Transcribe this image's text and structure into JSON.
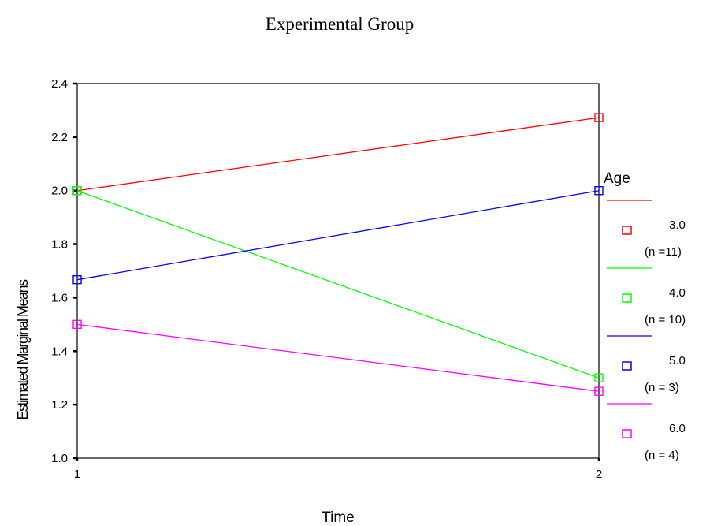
{
  "chart_data": {
    "type": "line",
    "title": "Experimental Group",
    "xlabel": "Time",
    "ylabel": "Estimated Marginal Means",
    "categories": [
      "1",
      "2"
    ],
    "ylim": [
      1.0,
      2.4
    ],
    "yticks": [
      "1.0",
      "1.2",
      "1.4",
      "1.6",
      "1.8",
      "2.0",
      "2.2",
      "2.4"
    ],
    "legend_title": "Age",
    "legend_position": "right",
    "marker": "square",
    "series": [
      {
        "name": "3.0",
        "n_label": "(n =11)",
        "color": "#ff0000",
        "values": [
          2.0,
          2.273
        ]
      },
      {
        "name": "4.0",
        "n_label": "(n = 10)",
        "color": "#00ff00",
        "values": [
          2.0,
          1.3
        ]
      },
      {
        "name": "5.0",
        "n_label": "(n = 3)",
        "color": "#0000ff",
        "values": [
          1.667,
          2.0
        ]
      },
      {
        "name": "6.0",
        "n_label": "(n = 4)",
        "color": "#ff00ff",
        "values": [
          1.5,
          1.25
        ]
      }
    ]
  }
}
